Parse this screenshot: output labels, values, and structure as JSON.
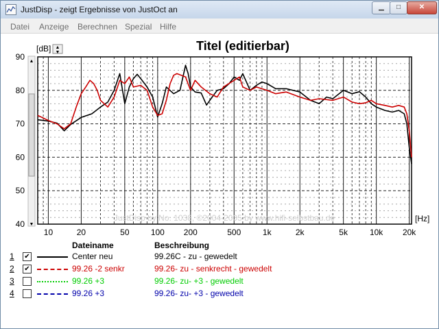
{
  "window": {
    "title": "JustDisp - zeigt Ergebnisse von JustOct an",
    "controls": {
      "minimize": "▁",
      "maximize": "□",
      "close": "✕"
    }
  },
  "menu": [
    "Datei",
    "Anzeige",
    "Berechnen",
    "Spezial",
    "Hilfe"
  ],
  "chart": {
    "title": "Titel (editierbar)",
    "y_unit": "[dB]",
    "x_unit": "[Hz]",
    "watermark": "JustDisp by No. 1038, ©2004-2005 by www.hifi-selbstbau.de"
  },
  "chart_data": {
    "type": "line",
    "title": "Titel (editierbar)",
    "xlabel": "[Hz]",
    "ylabel": "[dB]",
    "x_scale": "log",
    "xlim": [
      8,
      21000
    ],
    "ylim": [
      40,
      90
    ],
    "xticks": [
      "10",
      "20",
      "50",
      "100",
      "200",
      "500",
      "1k",
      "2k",
      "5k",
      "10k",
      "20k"
    ],
    "yticks": [
      "40",
      "50",
      "60",
      "70",
      "80",
      "90"
    ],
    "grid": true,
    "series": [
      {
        "name": "Center neu",
        "color": "#000000",
        "points": [
          [
            8,
            71.2
          ],
          [
            10,
            70.8
          ],
          [
            12,
            70.2
          ],
          [
            14,
            67.9
          ],
          [
            16,
            69.8
          ],
          [
            20,
            71.9
          ],
          [
            25,
            73
          ],
          [
            30,
            75
          ],
          [
            35,
            76.5
          ],
          [
            40,
            80
          ],
          [
            45,
            85
          ],
          [
            50,
            76
          ],
          [
            55,
            81
          ],
          [
            60,
            83.5
          ],
          [
            65,
            84.8
          ],
          [
            70,
            83.5
          ],
          [
            80,
            81
          ],
          [
            90,
            78
          ],
          [
            100,
            72
          ],
          [
            110,
            76
          ],
          [
            120,
            81
          ],
          [
            140,
            79
          ],
          [
            160,
            80
          ],
          [
            180,
            87.5
          ],
          [
            190,
            85
          ],
          [
            200,
            81
          ],
          [
            220,
            79.5
          ],
          [
            250,
            79.2
          ],
          [
            280,
            75.6
          ],
          [
            300,
            77
          ],
          [
            350,
            80
          ],
          [
            400,
            80.5
          ],
          [
            450,
            82
          ],
          [
            500,
            84
          ],
          [
            560,
            83
          ],
          [
            600,
            85
          ],
          [
            700,
            80
          ],
          [
            800,
            81.5
          ],
          [
            900,
            82.5
          ],
          [
            1000,
            82
          ],
          [
            1200,
            80.5
          ],
          [
            1500,
            80.5
          ],
          [
            2000,
            79.5
          ],
          [
            2500,
            77
          ],
          [
            3000,
            76
          ],
          [
            3500,
            78
          ],
          [
            4000,
            77.5
          ],
          [
            5000,
            80
          ],
          [
            6000,
            79
          ],
          [
            7000,
            79.6
          ],
          [
            8000,
            78
          ],
          [
            9000,
            76
          ],
          [
            10000,
            75
          ],
          [
            12000,
            74
          ],
          [
            14000,
            73.5
          ],
          [
            16000,
            74
          ],
          [
            18000,
            73
          ],
          [
            19000,
            70
          ],
          [
            20000,
            63
          ],
          [
            21000,
            58
          ]
        ]
      },
      {
        "name": "99.26 -2 senkr",
        "color": "#cc0000",
        "points": [
          [
            8,
            72.5
          ],
          [
            10,
            71
          ],
          [
            12,
            70
          ],
          [
            14,
            68.5
          ],
          [
            16,
            70
          ],
          [
            18,
            75
          ],
          [
            20,
            79
          ],
          [
            22,
            81
          ],
          [
            24,
            83
          ],
          [
            26,
            82
          ],
          [
            28,
            80
          ],
          [
            30,
            77
          ],
          [
            35,
            75
          ],
          [
            40,
            78
          ],
          [
            45,
            83
          ],
          [
            50,
            82
          ],
          [
            55,
            84
          ],
          [
            60,
            81
          ],
          [
            70,
            81.5
          ],
          [
            80,
            80
          ],
          [
            90,
            75
          ],
          [
            100,
            72.5
          ],
          [
            110,
            73
          ],
          [
            120,
            77
          ],
          [
            130,
            82
          ],
          [
            140,
            84.5
          ],
          [
            150,
            85
          ],
          [
            180,
            84
          ],
          [
            200,
            80
          ],
          [
            220,
            83
          ],
          [
            250,
            81
          ],
          [
            300,
            79
          ],
          [
            350,
            78
          ],
          [
            400,
            81
          ],
          [
            500,
            83
          ],
          [
            560,
            84
          ],
          [
            600,
            81
          ],
          [
            700,
            80
          ],
          [
            800,
            81
          ],
          [
            1000,
            80
          ],
          [
            1200,
            79
          ],
          [
            1500,
            79.5
          ],
          [
            2000,
            78
          ],
          [
            2500,
            77
          ],
          [
            3000,
            77.5
          ],
          [
            4000,
            77
          ],
          [
            5000,
            78
          ],
          [
            6000,
            76.5
          ],
          [
            7000,
            76
          ],
          [
            8000,
            76.3
          ],
          [
            9000,
            77
          ],
          [
            10000,
            76
          ],
          [
            12000,
            75.5
          ],
          [
            14000,
            75
          ],
          [
            16000,
            75.5
          ],
          [
            18000,
            75
          ],
          [
            19000,
            73
          ],
          [
            20000,
            68
          ],
          [
            21000,
            60
          ]
        ]
      },
      {
        "name": "99.26 +3",
        "color": "#00cc00",
        "points": []
      },
      {
        "name": "99.26 +3",
        "color": "#0000aa",
        "points": []
      }
    ]
  },
  "legend": {
    "header_name": "Dateiname",
    "header_desc": "Beschreibung",
    "rows": [
      {
        "num": "1",
        "checked": true,
        "check_mark": "✔",
        "name": "Center neu",
        "desc": "99.26C - zu - gewedelt",
        "color": "#000000",
        "style": "solid"
      },
      {
        "num": "2",
        "checked": true,
        "check_mark": "✔",
        "name": "99.26 -2 senkr",
        "desc": "99.26- zu - senkrecht - gewedelt",
        "color": "#cc0000",
        "style": "dashed"
      },
      {
        "num": "3",
        "checked": false,
        "check_mark": "",
        "name": "99.26 +3",
        "desc": "99.26- zu- +3 - gewedelt",
        "color": "#00cc00",
        "style": "dotted"
      },
      {
        "num": "4",
        "checked": false,
        "check_mark": "",
        "name": "99.26 +3",
        "desc": "99.26- zu- +3 - gewedelt",
        "color": "#0000aa",
        "style": "dashdot"
      }
    ]
  }
}
